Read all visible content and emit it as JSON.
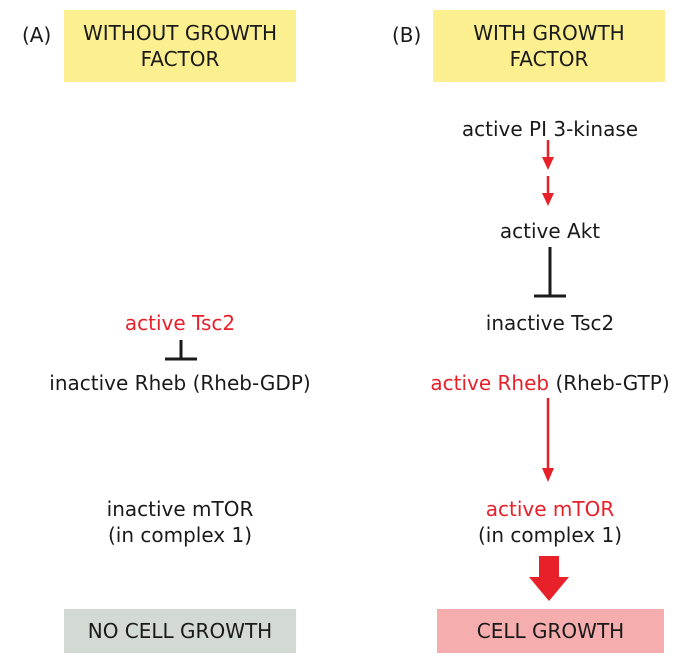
{
  "panel_a": {
    "letter": "(A)",
    "header_line1": "WITHOUT GROWTH",
    "header_line2": "FACTOR",
    "tsc2": "active Tsc2",
    "rheb": "inactive Rheb (Rheb-GDP)",
    "mtor_line1": "inactive mTOR",
    "mtor_line2": "(in complex 1)",
    "result": "NO CELL GROWTH"
  },
  "panel_b": {
    "letter": "(B)",
    "header_line1": "WITH GROWTH",
    "header_line2": "FACTOR",
    "pi3k": "active PI 3-kinase",
    "akt": "active Akt",
    "tsc2": "inactive Tsc2",
    "rheb_red": "active Rheb",
    "rheb_black": " (Rheb-GTP)",
    "mtor_line1": "active mTOR",
    "mtor_line2": "(in complex 1)",
    "result": "CELL GROWTH"
  },
  "colors": {
    "header_bg": "#fbef8f",
    "no_growth_bg": "#d3d9d3",
    "growth_bg": "#f6adad",
    "active_red": "#e8202a",
    "inhibit_black": "#1a1a1a"
  }
}
